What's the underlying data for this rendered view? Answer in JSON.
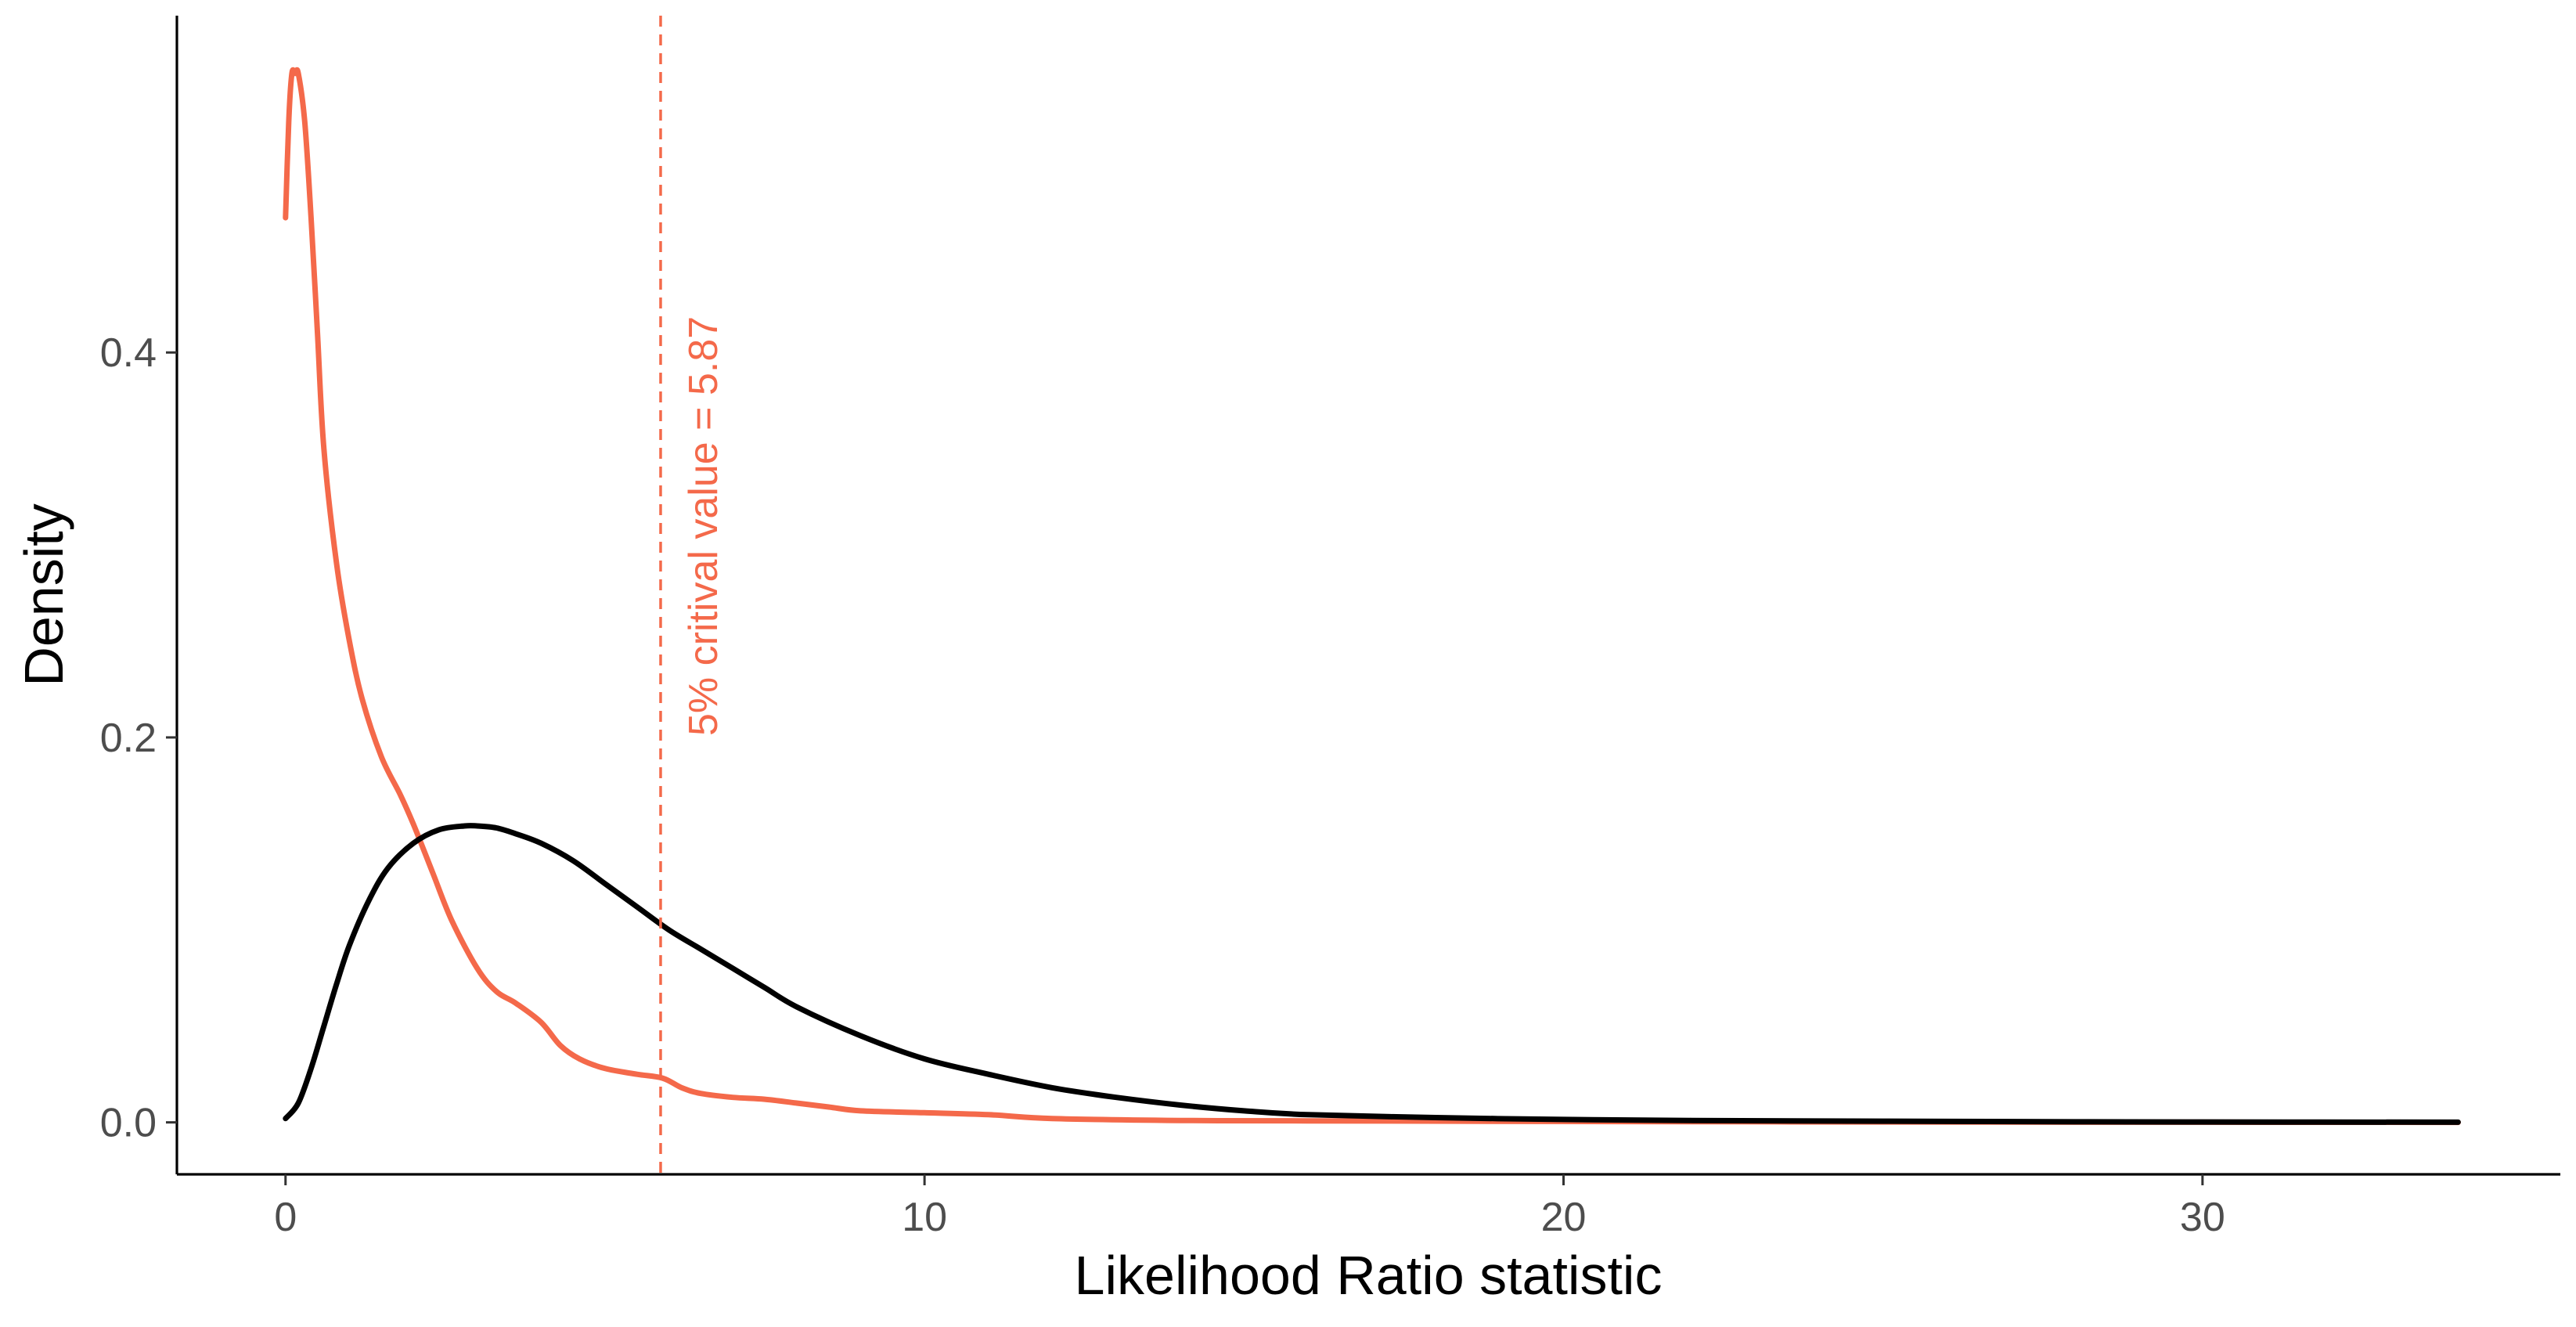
{
  "chart_data": {
    "type": "line",
    "xlabel": "Likelihood Ratio statistic",
    "ylabel": "Density",
    "xlim": [
      -1.7,
      35.6
    ],
    "ylim": [
      -0.027,
      0.575
    ],
    "x_ticks": [
      0,
      10,
      20,
      30
    ],
    "x_tick_labels": [
      "0",
      "10",
      "20",
      "30"
    ],
    "y_ticks": [
      0.0,
      0.2,
      0.4
    ],
    "y_tick_labels": [
      "0.0",
      "0.2",
      "0.4"
    ],
    "grid": false,
    "legend": "none",
    "series": [
      {
        "color": "#f4694a",
        "x": [
          0,
          0.05,
          0.1,
          0.15,
          0.2,
          0.3,
          0.4,
          0.5,
          0.6,
          0.8,
          1.0,
          1.2,
          1.5,
          1.8,
          2.0,
          2.3,
          2.6,
          3.0,
          3.3,
          3.6,
          4.0,
          4.3,
          4.6,
          5.0,
          5.5,
          5.9,
          6.2,
          6.5,
          7.0,
          7.5,
          8.0,
          8.5,
          9.0,
          10.0,
          11.0,
          12.0,
          14.0,
          16.0,
          20.0,
          25.0,
          30.0,
          34.0
        ],
        "values": [
          0.47,
          0.52,
          0.545,
          0.545,
          0.545,
          0.52,
          0.47,
          0.41,
          0.35,
          0.29,
          0.25,
          0.22,
          0.19,
          0.17,
          0.155,
          0.13,
          0.105,
          0.08,
          0.068,
          0.062,
          0.052,
          0.04,
          0.033,
          0.028,
          0.025,
          0.023,
          0.018,
          0.015,
          0.013,
          0.012,
          0.01,
          0.008,
          0.006,
          0.005,
          0.004,
          0.002,
          0.001,
          0.0008,
          0.0005,
          0.0002,
          0.0001,
          0.0
        ]
      },
      {
        "color": "#000000",
        "x": [
          0,
          0.2,
          0.4,
          0.6,
          0.8,
          1.0,
          1.3,
          1.6,
          2.0,
          2.4,
          2.8,
          3.0,
          3.3,
          3.6,
          4.0,
          4.5,
          5.0,
          5.5,
          6.0,
          6.5,
          7.0,
          7.5,
          8.0,
          9.0,
          10.0,
          11.0,
          12.0,
          13.0,
          14.0,
          15.0,
          16.0,
          18.0,
          20.0,
          22.0,
          25.0,
          28.0,
          30.0,
          34.0
        ],
        "values": [
          0.002,
          0.01,
          0.028,
          0.05,
          0.072,
          0.092,
          0.115,
          0.132,
          0.145,
          0.152,
          0.154,
          0.154,
          0.153,
          0.15,
          0.145,
          0.136,
          0.124,
          0.112,
          0.1,
          0.09,
          0.08,
          0.07,
          0.06,
          0.045,
          0.033,
          0.025,
          0.018,
          0.013,
          0.009,
          0.006,
          0.004,
          0.0025,
          0.0015,
          0.001,
          0.0006,
          0.0003,
          0.0002,
          0.0001
        ]
      }
    ],
    "reference_line": {
      "orientation": "vertical",
      "x": 5.87,
      "color": "#f4694a",
      "style": "dashed"
    },
    "annotations": [
      {
        "text": "5% critival value = 5.87",
        "x": 5.87,
        "color": "#f4694a",
        "rotation": "vertical"
      }
    ]
  }
}
